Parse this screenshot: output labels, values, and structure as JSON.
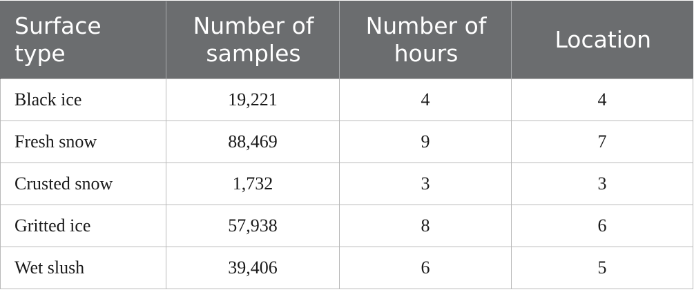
{
  "table": {
    "headers": [
      "Surface type",
      "Number of samples",
      "Number of hours",
      "Location"
    ],
    "rows": [
      [
        "Black ice",
        "19,221",
        "4",
        "4"
      ],
      [
        "Fresh snow",
        "88,469",
        "9",
        "7"
      ],
      [
        "Crusted snow",
        "1,732",
        "3",
        "3"
      ],
      [
        "Gritted ice",
        "57,938",
        "8",
        "6"
      ],
      [
        "Wet slush",
        "39,406",
        "6",
        "5"
      ]
    ]
  },
  "colors": {
    "header_background": "#6b6d6f",
    "header_text": "#ffffff",
    "grid_line": "#b8b8b8"
  }
}
